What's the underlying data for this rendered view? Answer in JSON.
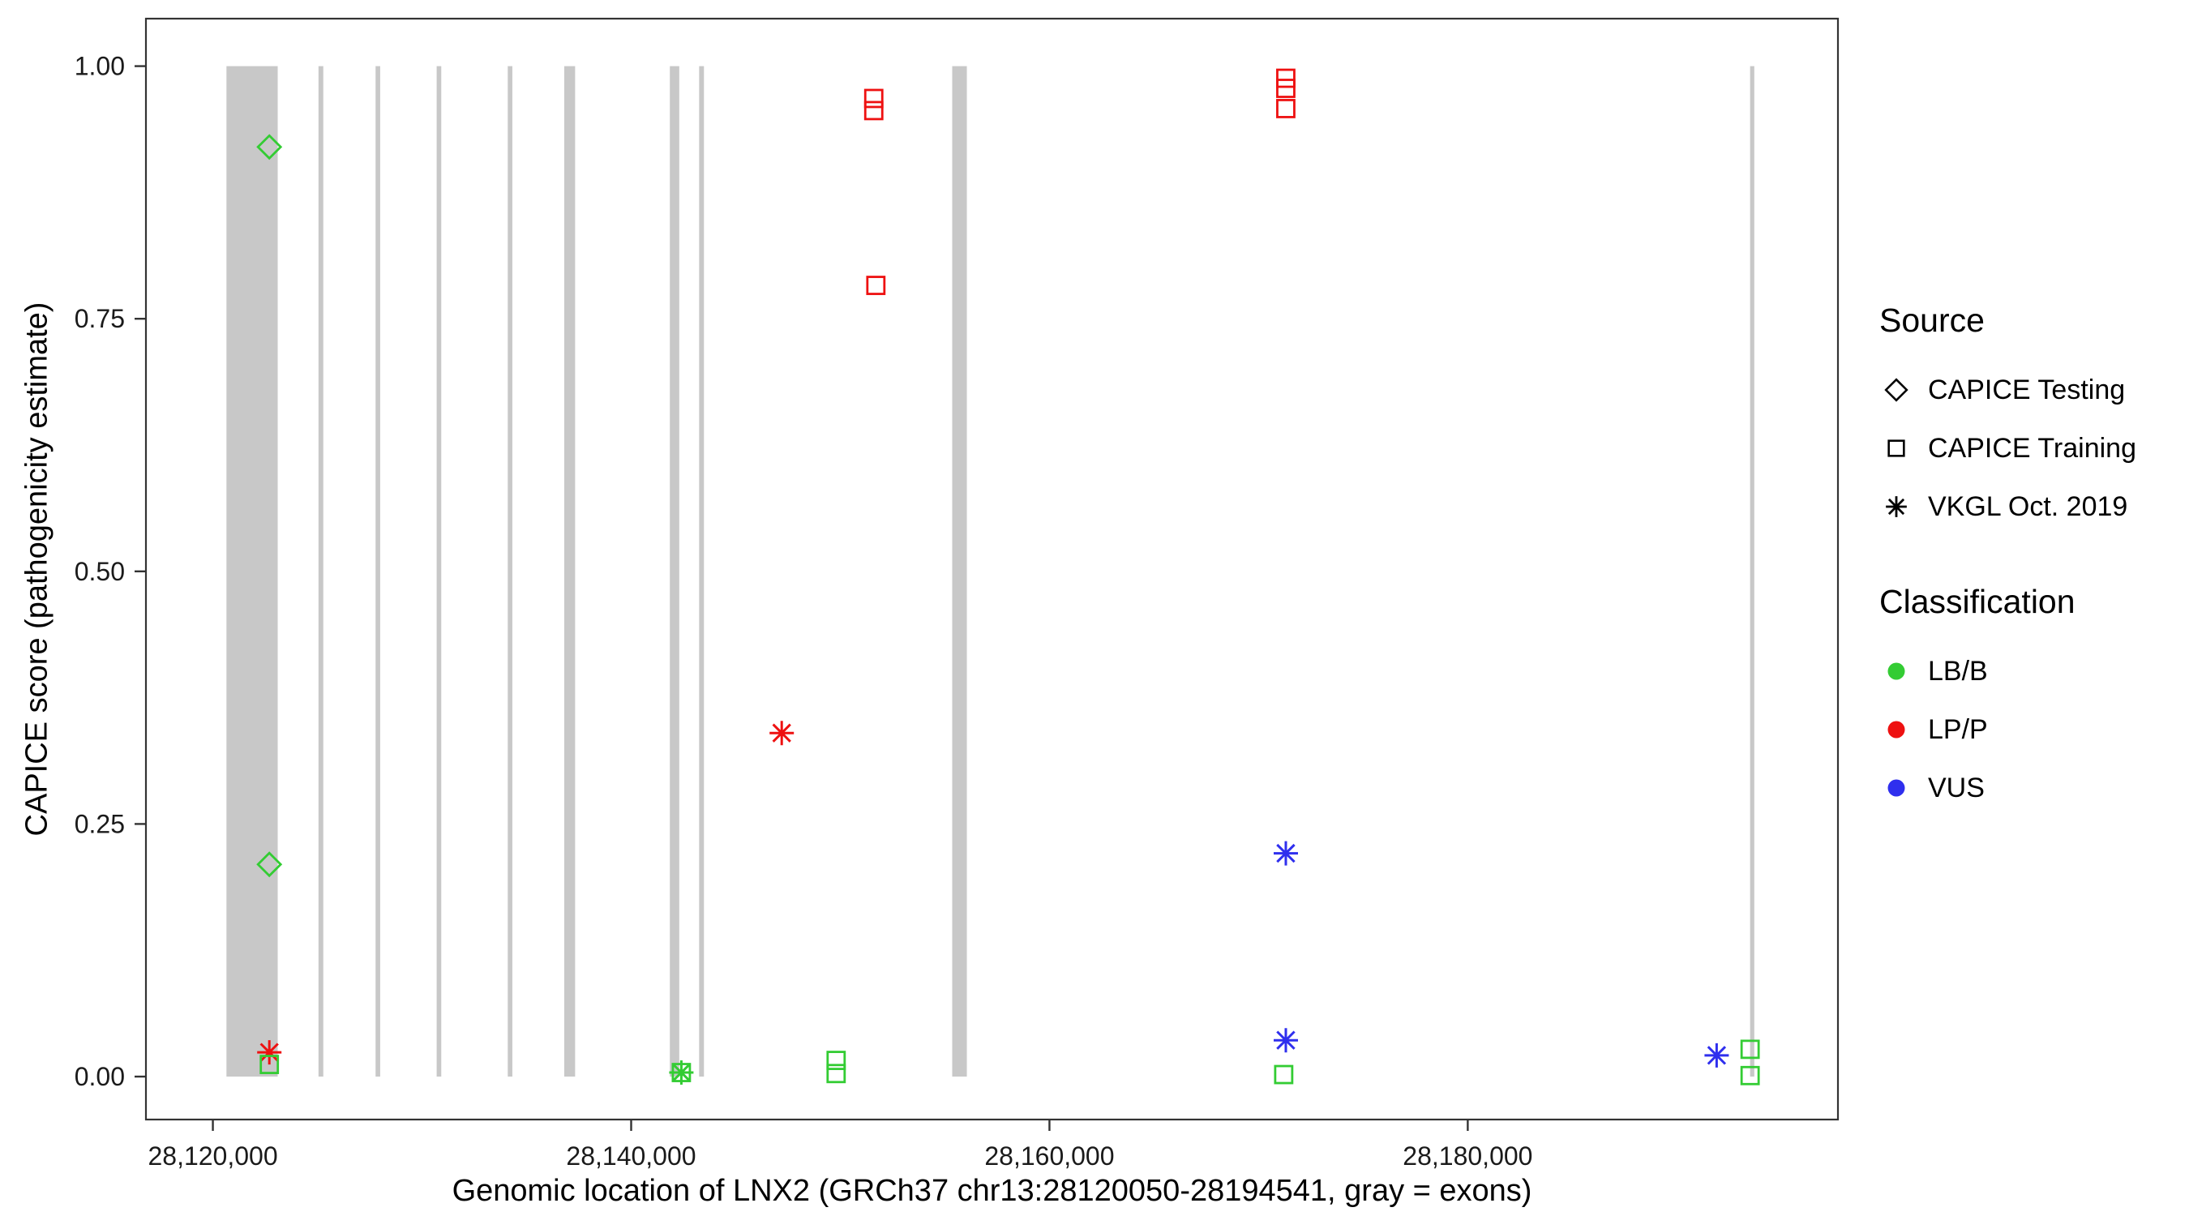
{
  "figure": {
    "background": "#ffffff",
    "panel_border_color": "#333333"
  },
  "chart_data": {
    "type": "scatter",
    "title": "",
    "xlabel": "Genomic location of LNX2 (GRCh37 chr13:28120050-28194541, gray = exons)",
    "ylabel": "CAPICE score (pathogenicity estimate)",
    "x_domain": [
      28116800,
      28197700
    ],
    "y_domain": [
      -0.0425,
      1.047
    ],
    "x_ticks": [
      {
        "value": 28120000,
        "label": "28,120,000"
      },
      {
        "value": 28140000,
        "label": "28,140,000"
      },
      {
        "value": 28160000,
        "label": "28,160,000"
      },
      {
        "value": 28180000,
        "label": "28,180,000"
      }
    ],
    "y_ticks": [
      {
        "value": 0.0,
        "label": "0.00"
      },
      {
        "value": 0.25,
        "label": "0.25"
      },
      {
        "value": 0.5,
        "label": "0.50"
      },
      {
        "value": 0.75,
        "label": "0.75"
      },
      {
        "value": 1.0,
        "label": "1.00"
      }
    ],
    "grid": "off",
    "legend_position": "right",
    "exon_color": "#c8c8c8",
    "exons": [
      [
        28120650,
        28123100
      ],
      [
        28125050,
        28125280
      ],
      [
        28127780,
        28128000
      ],
      [
        28130700,
        28130920
      ],
      [
        28134100,
        28134320
      ],
      [
        28136800,
        28137320
      ],
      [
        28141850,
        28142300
      ],
      [
        28143250,
        28143480
      ],
      [
        28155350,
        28156050
      ],
      [
        28193500,
        28193700
      ]
    ],
    "classification_colors": {
      "LB/B": "#33cc33",
      "LP/P": "#ee1111",
      "VUS": "#2f2fee"
    },
    "source_shapes": {
      "CAPICE Testing": "diamond",
      "CAPICE Training": "square",
      "VKGL Oct. 2019": "asterisk"
    },
    "points": [
      {
        "x": 28122700,
        "y": 0.92,
        "source": "CAPICE Testing",
        "classification": "LB/B"
      },
      {
        "x": 28122700,
        "y": 0.21,
        "source": "CAPICE Testing",
        "classification": "LB/B"
      },
      {
        "x": 28122700,
        "y": 0.024,
        "source": "VKGL Oct. 2019",
        "classification": "LP/P"
      },
      {
        "x": 28122700,
        "y": 0.012,
        "source": "CAPICE Training",
        "classification": "LB/B"
      },
      {
        "x": 28142400,
        "y": 0.004,
        "source": "CAPICE Training",
        "classification": "LB/B"
      },
      {
        "x": 28142400,
        "y": 0.004,
        "source": "VKGL Oct. 2019",
        "classification": "LB/B"
      },
      {
        "x": 28147200,
        "y": 0.34,
        "source": "VKGL Oct. 2019",
        "classification": "LP/P"
      },
      {
        "x": 28149800,
        "y": 0.016,
        "source": "CAPICE Training",
        "classification": "LB/B"
      },
      {
        "x": 28149800,
        "y": 0.003,
        "source": "CAPICE Training",
        "classification": "LB/B"
      },
      {
        "x": 28151600,
        "y": 0.968,
        "source": "CAPICE Training",
        "classification": "LP/P"
      },
      {
        "x": 28151600,
        "y": 0.956,
        "source": "CAPICE Training",
        "classification": "LP/P"
      },
      {
        "x": 28151700,
        "y": 0.783,
        "source": "CAPICE Training",
        "classification": "LP/P"
      },
      {
        "x": 28171300,
        "y": 0.988,
        "source": "CAPICE Training",
        "classification": "LP/P"
      },
      {
        "x": 28171300,
        "y": 0.978,
        "source": "CAPICE Training",
        "classification": "LP/P"
      },
      {
        "x": 28171300,
        "y": 0.958,
        "source": "CAPICE Training",
        "classification": "LP/P"
      },
      {
        "x": 28171300,
        "y": 0.221,
        "source": "VKGL Oct. 2019",
        "classification": "VUS"
      },
      {
        "x": 28171300,
        "y": 0.036,
        "source": "VKGL Oct. 2019",
        "classification": "VUS"
      },
      {
        "x": 28171200,
        "y": 0.002,
        "source": "CAPICE Training",
        "classification": "LB/B"
      },
      {
        "x": 28191900,
        "y": 0.021,
        "source": "VKGL Oct. 2019",
        "classification": "VUS"
      },
      {
        "x": 28193500,
        "y": 0.027,
        "source": "CAPICE Training",
        "classification": "LB/B"
      },
      {
        "x": 28193500,
        "y": 0.001,
        "source": "CAPICE Training",
        "classification": "LB/B"
      }
    ]
  },
  "legend": {
    "source": {
      "title": "Source",
      "items": [
        {
          "label": "CAPICE Testing",
          "shape": "diamond"
        },
        {
          "label": "CAPICE Training",
          "shape": "square"
        },
        {
          "label": "VKGL Oct. 2019",
          "shape": "asterisk"
        }
      ]
    },
    "classification": {
      "title": "Classification",
      "items": [
        {
          "label": "LB/B",
          "color": "#33cc33"
        },
        {
          "label": "LP/P",
          "color": "#ee1111"
        },
        {
          "label": "VUS",
          "color": "#2f2fee"
        }
      ]
    }
  }
}
